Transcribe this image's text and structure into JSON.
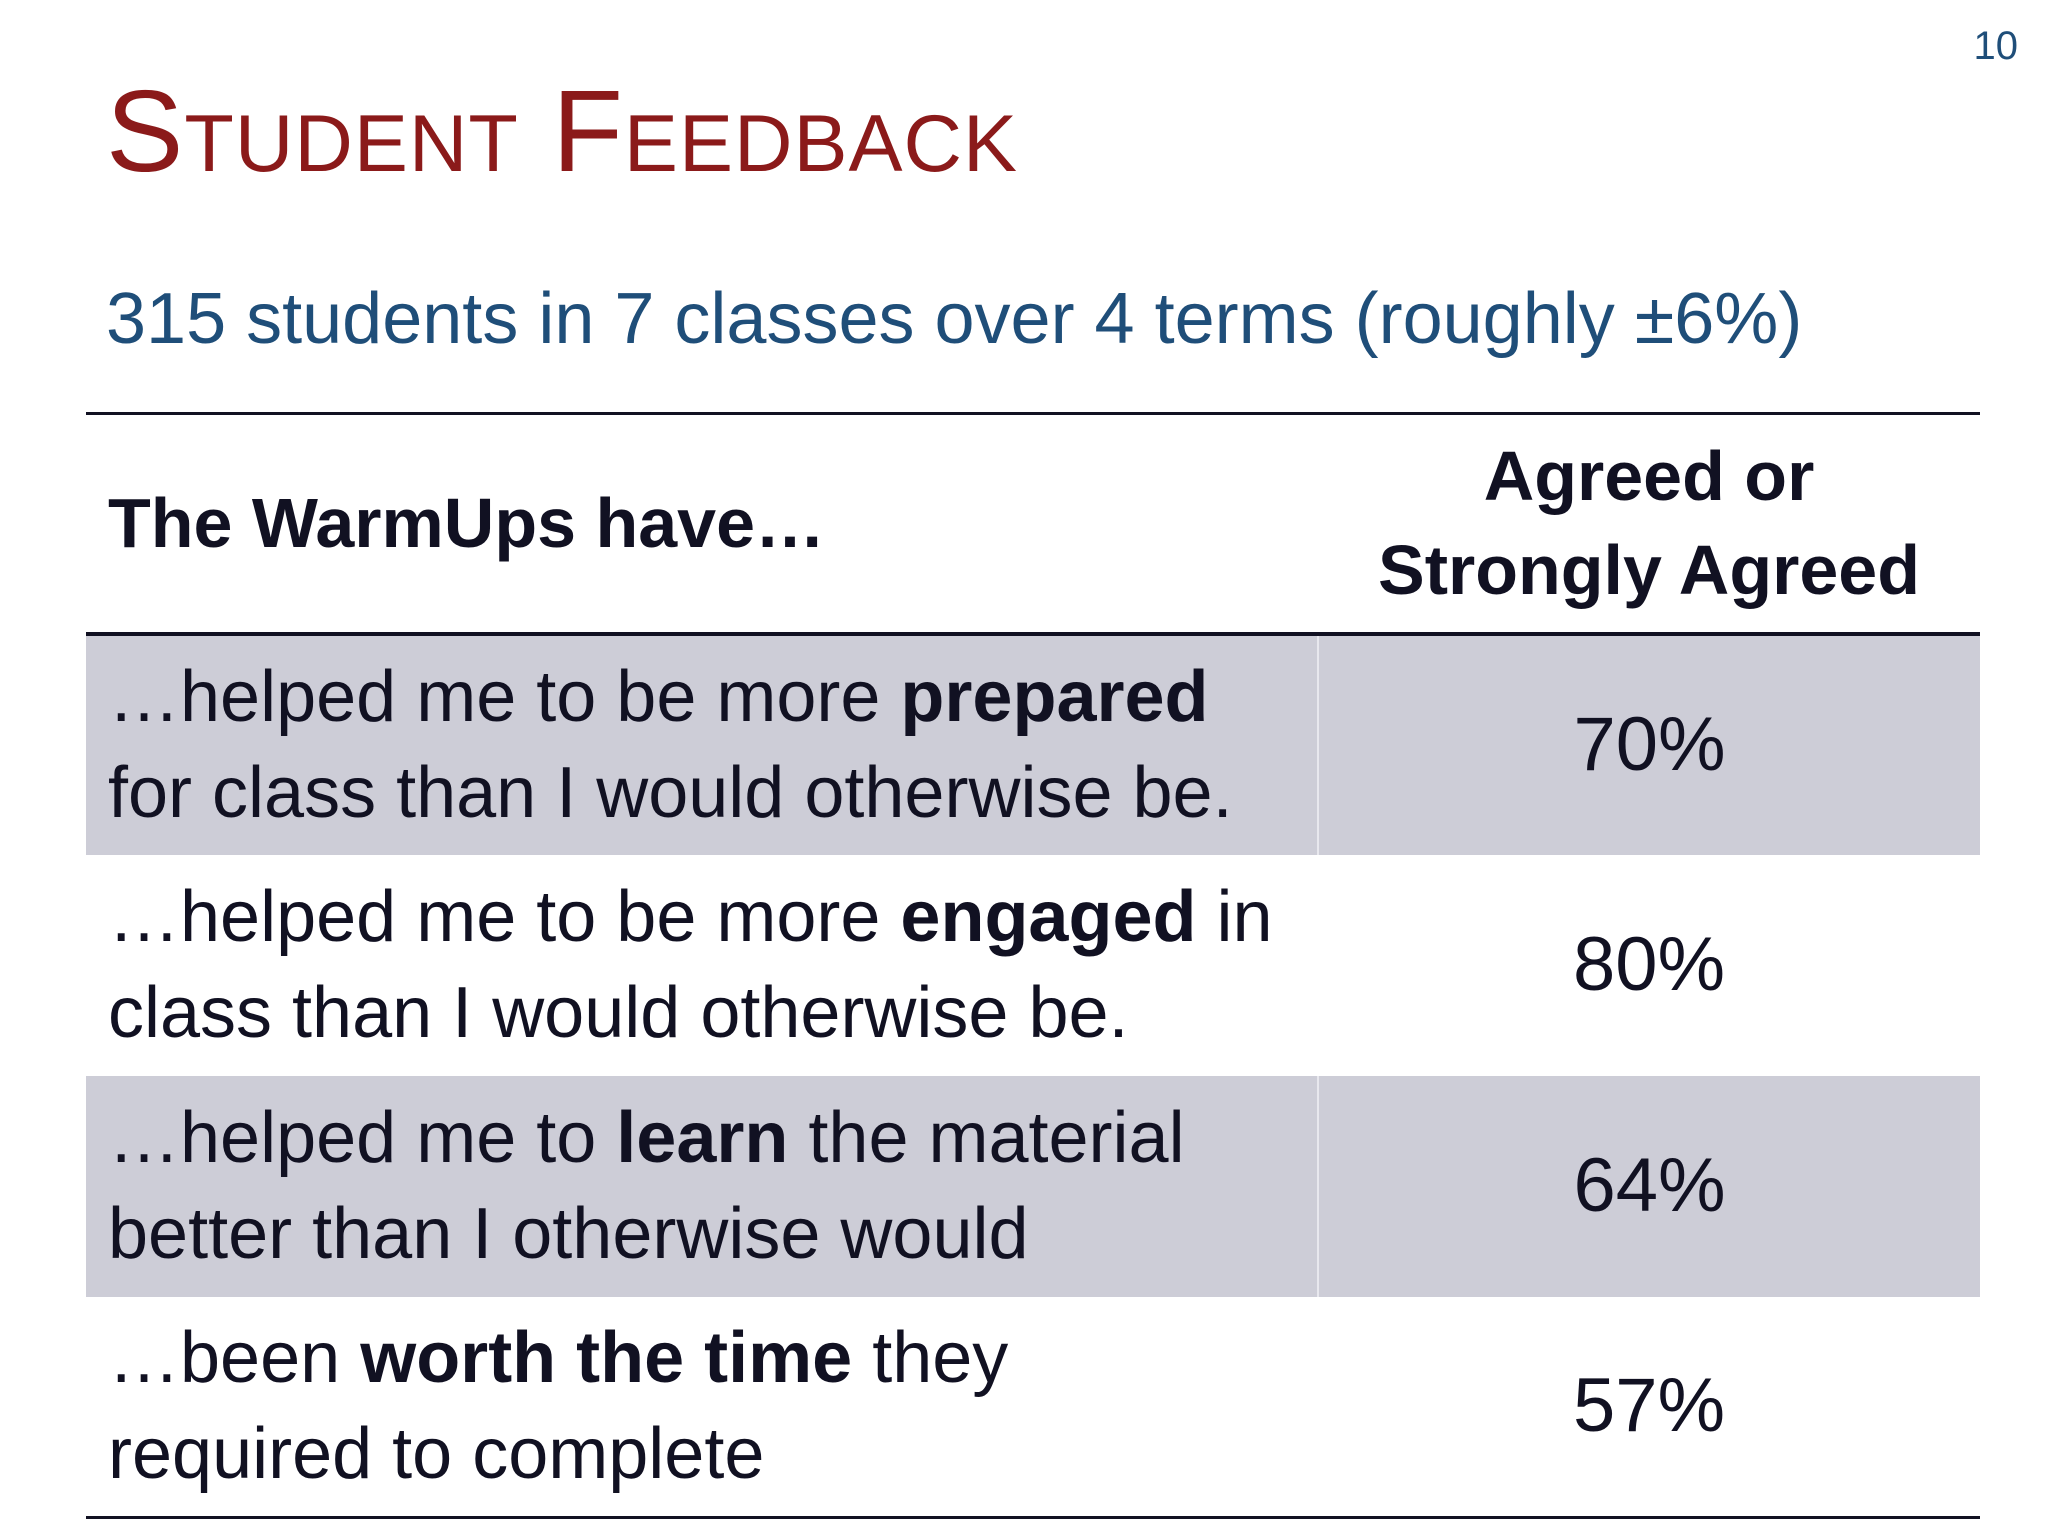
{
  "slide": {
    "number": "10",
    "title": "Student Feedback",
    "subtitle": "315 students in 7 classes over 4 terms (roughly ±6%)"
  },
  "table": {
    "headers": {
      "statement": "The WarmUps have…",
      "agreed_line1": "Agreed or",
      "agreed_line2": "Strongly Agreed"
    },
    "rows": [
      {
        "l1_pre": "…helped me to be more ",
        "l1_bold": "prepared",
        "l1_post": "",
        "l2": "for class than I would otherwise be.",
        "value": "70%"
      },
      {
        "l1_pre": "…helped me to be more ",
        "l1_bold": "engaged",
        "l1_post": " in",
        "l2": "class than I would otherwise be.",
        "value": "80%"
      },
      {
        "l1_pre": "…helped me to ",
        "l1_bold": "learn",
        "l1_post": " the material",
        "l2": "better than I otherwise would",
        "value": "64%"
      },
      {
        "l1_pre": "…been ",
        "l1_bold": "worth the time",
        "l1_post": " they",
        "l2": "required to complete",
        "value": "57%"
      }
    ]
  }
}
